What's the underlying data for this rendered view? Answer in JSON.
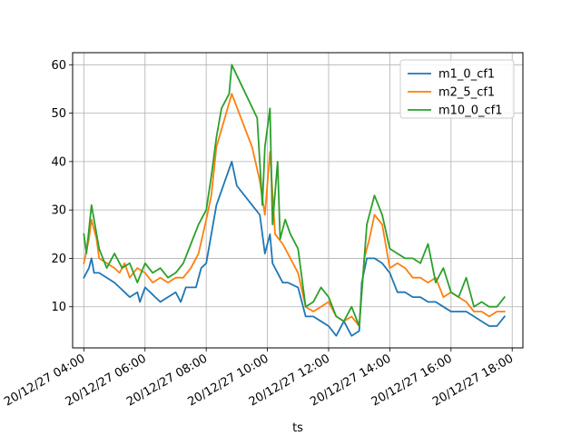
{
  "chart_data": {
    "type": "line",
    "xlabel": "ts",
    "ylabel": "",
    "ylim": [
      1.5,
      62.5
    ],
    "xlim": [
      "20/12/27 03:38",
      "20/12/27 18:21"
    ],
    "x_ticks": [
      "20/12/27 04:00",
      "20/12/27 06:00",
      "20/12/27 08:00",
      "20/12/27 10:00",
      "20/12/27 12:00",
      "20/12/27 14:00",
      "20/12/27 16:00",
      "20/12/27 18:00"
    ],
    "y_ticks": [
      10,
      20,
      30,
      40,
      50,
      60
    ],
    "grid": true,
    "legend_position": "top-right",
    "series": [
      {
        "name": "m1_0_cf1",
        "color": "#1f77b4",
        "points": [
          [
            "20/12/27 04:00",
            16
          ],
          [
            "20/12/27 04:10",
            18
          ],
          [
            "20/12/27 04:15",
            20
          ],
          [
            "20/12/27 04:20",
            17
          ],
          [
            "20/12/27 04:30",
            17
          ],
          [
            "20/12/27 04:45",
            16
          ],
          [
            "20/12/27 05:00",
            15
          ],
          [
            "20/12/27 05:10",
            14
          ],
          [
            "20/12/27 05:20",
            13
          ],
          [
            "20/12/27 05:30",
            12
          ],
          [
            "20/12/27 05:45",
            13
          ],
          [
            "20/12/27 05:50",
            11
          ],
          [
            "20/12/27 06:00",
            14
          ],
          [
            "20/12/27 06:10",
            13
          ],
          [
            "20/12/27 06:20",
            12
          ],
          [
            "20/12/27 06:30",
            11
          ],
          [
            "20/12/27 06:45",
            12
          ],
          [
            "20/12/27 07:00",
            13
          ],
          [
            "20/12/27 07:10",
            11
          ],
          [
            "20/12/27 07:20",
            14
          ],
          [
            "20/12/27 07:40",
            14
          ],
          [
            "20/12/27 07:50",
            18
          ],
          [
            "20/12/27 08:00",
            19
          ],
          [
            "20/12/27 08:10",
            25
          ],
          [
            "20/12/27 08:20",
            31
          ],
          [
            "20/12/27 08:50",
            40
          ],
          [
            "20/12/27 09:00",
            35
          ],
          [
            "20/12/27 09:30",
            31
          ],
          [
            "20/12/27 09:45",
            29
          ],
          [
            "20/12/27 09:55",
            21
          ],
          [
            "20/12/27 10:05",
            25
          ],
          [
            "20/12/27 10:10",
            19
          ],
          [
            "20/12/27 10:20",
            17
          ],
          [
            "20/12/27 10:30",
            15
          ],
          [
            "20/12/27 10:40",
            15
          ],
          [
            "20/12/27 11:00",
            14
          ],
          [
            "20/12/27 11:15",
            8
          ],
          [
            "20/12/27 11:30",
            8
          ],
          [
            "20/12/27 11:45",
            7
          ],
          [
            "20/12/27 12:00",
            6
          ],
          [
            "20/12/27 12:15",
            4
          ],
          [
            "20/12/27 12:30",
            7
          ],
          [
            "20/12/27 12:45",
            4
          ],
          [
            "20/12/27 13:00",
            5
          ],
          [
            "20/12/27 13:05",
            15
          ],
          [
            "20/12/27 13:15",
            20
          ],
          [
            "20/12/27 13:30",
            20
          ],
          [
            "20/12/27 13:45",
            19
          ],
          [
            "20/12/27 14:00",
            17
          ],
          [
            "20/12/27 14:15",
            13
          ],
          [
            "20/12/27 14:30",
            13
          ],
          [
            "20/12/27 14:45",
            12
          ],
          [
            "20/12/27 15:00",
            12
          ],
          [
            "20/12/27 15:15",
            11
          ],
          [
            "20/12/27 15:30",
            11
          ],
          [
            "20/12/27 15:45",
            10
          ],
          [
            "20/12/27 16:00",
            9
          ],
          [
            "20/12/27 16:30",
            9
          ],
          [
            "20/12/27 16:45",
            8
          ],
          [
            "20/12/27 17:00",
            7
          ],
          [
            "20/12/27 17:15",
            6
          ],
          [
            "20/12/27 17:30",
            6
          ],
          [
            "20/12/27 17:45",
            8
          ]
        ]
      },
      {
        "name": "m2_5_cf1",
        "color": "#ff7f0e",
        "points": [
          [
            "20/12/27 04:00",
            19
          ],
          [
            "20/12/27 04:10",
            24
          ],
          [
            "20/12/27 04:15",
            28
          ],
          [
            "20/12/27 04:25",
            24
          ],
          [
            "20/12/27 04:30",
            20
          ],
          [
            "20/12/27 04:45",
            19
          ],
          [
            "20/12/27 05:00",
            18
          ],
          [
            "20/12/27 05:10",
            17
          ],
          [
            "20/12/27 05:20",
            19
          ],
          [
            "20/12/27 05:30",
            16
          ],
          [
            "20/12/27 05:45",
            18
          ],
          [
            "20/12/27 06:00",
            17
          ],
          [
            "20/12/27 06:15",
            15
          ],
          [
            "20/12/27 06:30",
            16
          ],
          [
            "20/12/27 06:45",
            15
          ],
          [
            "20/12/27 07:00",
            16
          ],
          [
            "20/12/27 07:15",
            16
          ],
          [
            "20/12/27 07:30",
            18
          ],
          [
            "20/12/27 07:45",
            21
          ],
          [
            "20/12/27 08:00",
            28
          ],
          [
            "20/12/27 08:10",
            33
          ],
          [
            "20/12/27 08:20",
            43
          ],
          [
            "20/12/27 08:50",
            54
          ],
          [
            "20/12/27 09:30",
            43
          ],
          [
            "20/12/27 09:45",
            36
          ],
          [
            "20/12/27 09:55",
            29
          ],
          [
            "20/12/27 10:05",
            42
          ],
          [
            "20/12/27 10:15",
            25
          ],
          [
            "20/12/27 10:30",
            23
          ],
          [
            "20/12/27 10:45",
            20
          ],
          [
            "20/12/27 11:00",
            17
          ],
          [
            "20/12/27 11:15",
            10
          ],
          [
            "20/12/27 11:30",
            9
          ],
          [
            "20/12/27 12:00",
            11
          ],
          [
            "20/12/27 12:15",
            8
          ],
          [
            "20/12/27 12:30",
            7
          ],
          [
            "20/12/27 12:45",
            8
          ],
          [
            "20/12/27 13:00",
            6
          ],
          [
            "20/12/27 13:10",
            20
          ],
          [
            "20/12/27 13:20",
            24
          ],
          [
            "20/12/27 13:30",
            29
          ],
          [
            "20/12/27 13:45",
            27
          ],
          [
            "20/12/27 14:00",
            18
          ],
          [
            "20/12/27 14:15",
            19
          ],
          [
            "20/12/27 14:30",
            18
          ],
          [
            "20/12/27 14:45",
            16
          ],
          [
            "20/12/27 15:00",
            16
          ],
          [
            "20/12/27 15:15",
            15
          ],
          [
            "20/12/27 15:30",
            16
          ],
          [
            "20/12/27 15:45",
            12
          ],
          [
            "20/12/27 16:00",
            13
          ],
          [
            "20/12/27 16:15",
            12
          ],
          [
            "20/12/27 16:30",
            11
          ],
          [
            "20/12/27 16:45",
            9
          ],
          [
            "20/12/27 17:00",
            9
          ],
          [
            "20/12/27 17:15",
            8
          ],
          [
            "20/12/27 17:30",
            9
          ],
          [
            "20/12/27 17:45",
            9
          ]
        ]
      },
      {
        "name": "m10_0_cf1",
        "color": "#2ca02c",
        "points": [
          [
            "20/12/27 04:00",
            25
          ],
          [
            "20/12/27 04:05",
            21
          ],
          [
            "20/12/27 04:15",
            31
          ],
          [
            "20/12/27 04:25",
            25
          ],
          [
            "20/12/27 04:30",
            22
          ],
          [
            "20/12/27 04:45",
            18
          ],
          [
            "20/12/27 05:00",
            21
          ],
          [
            "20/12/27 05:15",
            18
          ],
          [
            "20/12/27 05:30",
            19
          ],
          [
            "20/12/27 05:45",
            15
          ],
          [
            "20/12/27 06:00",
            19
          ],
          [
            "20/12/27 06:15",
            17
          ],
          [
            "20/12/27 06:30",
            18
          ],
          [
            "20/12/27 06:45",
            16
          ],
          [
            "20/12/27 07:00",
            17
          ],
          [
            "20/12/27 07:15",
            19
          ],
          [
            "20/12/27 07:30",
            23
          ],
          [
            "20/12/27 07:45",
            27
          ],
          [
            "20/12/27 08:00",
            30
          ],
          [
            "20/12/27 08:10",
            37
          ],
          [
            "20/12/27 08:20",
            45
          ],
          [
            "20/12/27 08:30",
            51
          ],
          [
            "20/12/27 08:45",
            54
          ],
          [
            "20/12/27 08:50",
            60
          ],
          [
            "20/12/27 09:40",
            49
          ],
          [
            "20/12/27 09:50",
            31
          ],
          [
            "20/12/27 09:55",
            43
          ],
          [
            "20/12/27 10:05",
            51
          ],
          [
            "20/12/27 10:10",
            27
          ],
          [
            "20/12/27 10:20",
            40
          ],
          [
            "20/12/27 10:25",
            24
          ],
          [
            "20/12/27 10:35",
            28
          ],
          [
            "20/12/27 10:45",
            25
          ],
          [
            "20/12/27 11:00",
            22
          ],
          [
            "20/12/27 11:15",
            10
          ],
          [
            "20/12/27 11:30",
            11
          ],
          [
            "20/12/27 11:45",
            14
          ],
          [
            "20/12/27 12:00",
            12
          ],
          [
            "20/12/27 12:15",
            8
          ],
          [
            "20/12/27 12:30",
            7
          ],
          [
            "20/12/27 12:45",
            10
          ],
          [
            "20/12/27 13:00",
            6
          ],
          [
            "20/12/27 13:10",
            20
          ],
          [
            "20/12/27 13:15",
            27
          ],
          [
            "20/12/27 13:30",
            33
          ],
          [
            "20/12/27 13:45",
            29
          ],
          [
            "20/12/27 14:00",
            22
          ],
          [
            "20/12/27 14:15",
            21
          ],
          [
            "20/12/27 14:30",
            20
          ],
          [
            "20/12/27 14:45",
            20
          ],
          [
            "20/12/27 15:00",
            19
          ],
          [
            "20/12/27 15:15",
            23
          ],
          [
            "20/12/27 15:30",
            15
          ],
          [
            "20/12/27 15:45",
            18
          ],
          [
            "20/12/27 16:00",
            13
          ],
          [
            "20/12/27 16:15",
            12
          ],
          [
            "20/12/27 16:30",
            16
          ],
          [
            "20/12/27 16:45",
            10
          ],
          [
            "20/12/27 17:00",
            11
          ],
          [
            "20/12/27 17:15",
            10
          ],
          [
            "20/12/27 17:30",
            10
          ],
          [
            "20/12/27 17:45",
            12
          ]
        ]
      }
    ]
  }
}
